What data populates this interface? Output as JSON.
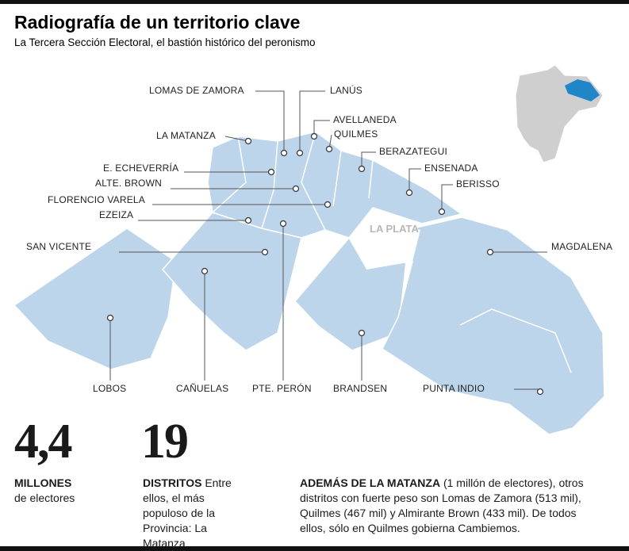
{
  "header": {
    "title": "Radiografía de un territorio clave",
    "subtitle": "La Tercera Sección Electoral, el bastión histórico del peronismo"
  },
  "map": {
    "labels": [
      "LOMAS DE ZAMORA",
      "LANÚS",
      "AVELLANEDA",
      "QUILMES",
      "LA MATANZA",
      "BERAZATEGUI",
      "E. ECHEVERRÍA",
      "ENSENADA",
      "ALTE. BROWN",
      "BERISSO",
      "FLORENCIO VARELA",
      "EZEIZA",
      "SAN VICENTE",
      "MAGDALENA",
      "LOBOS",
      "CAÑUELAS",
      "PTE. PERÓN",
      "BRANDSEN",
      "PUNTA INDIO"
    ],
    "city": "LA PLATA"
  },
  "stats": [
    {
      "number": "4,4",
      "label": "MILLONES",
      "text": "de electores"
    },
    {
      "number": "19",
      "label": "DISTRITOS",
      "text": "Entre ellos, el más populoso de la Provincia: La Matanza"
    }
  ],
  "note": {
    "lead": "ADEMÁS DE LA MATANZA",
    "text": "(1 millón de electores), otros distritos con fuerte peso son Lomas de Zamora (513 mil), Quilmes (467 mil) y Almirante Brown (433 mil). De todos ellos, sólo en Quilmes gobierna Cambiemos."
  }
}
